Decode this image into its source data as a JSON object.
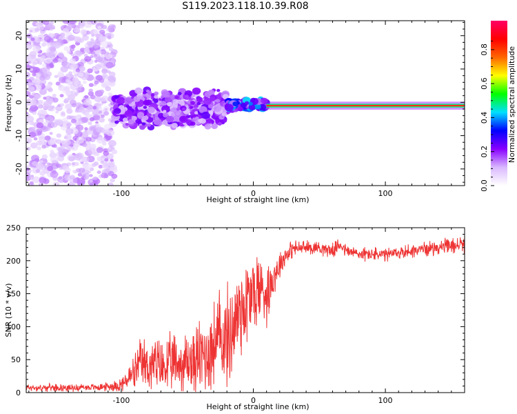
{
  "title": "S119.2023.118.10.39.R08",
  "colors": {
    "frame": "#000000",
    "snr_line": "#ee3333",
    "trace": "#ff2222",
    "colormap_stops": [
      "#ffffff",
      "#d9b8ff",
      "#8800ff",
      "#0000ff",
      "#00e0ff",
      "#00ff00",
      "#ffff00",
      "#ff6600",
      "#ff0000",
      "#ff0066"
    ]
  },
  "chart_data": [
    {
      "type": "heatmap",
      "title": "S119.2023.118.10.39.R08",
      "xlabel": "Height of straight line (km)",
      "ylabel": "Frequency (Hz)",
      "xlim": [
        -172,
        160
      ],
      "ylim": [
        -25,
        24.5
      ],
      "x_ticks": [
        -100,
        0,
        100
      ],
      "x_tick_labels": [
        "-100",
        "0",
        "100"
      ],
      "y_ticks": [
        20,
        10,
        0,
        -10,
        -20
      ],
      "y_tick_labels": [
        "20",
        "10",
        "0",
        "-10",
        "-20"
      ],
      "grid": false,
      "colorbar": {
        "label": "Normalized spectral amplitude",
        "range": [
          0,
          0.97
        ],
        "ticks": [
          0,
          0.2,
          0.4,
          0.6,
          0.8
        ],
        "tick_labels": [
          "0.0",
          "0.2",
          "0.4",
          "0.6",
          "0.8"
        ]
      },
      "regions": [
        {
          "x_range": [
            -172,
            -105
          ],
          "freq_range": [
            -25,
            24.5
          ],
          "amplitude": 0.05,
          "character": "scattered noise"
        },
        {
          "x_range": [
            -105,
            -20
          ],
          "freq_range": [
            -8,
            4
          ],
          "amplitude": 0.2,
          "character": "broadened signal"
        },
        {
          "x_range": [
            -20,
            10
          ],
          "freq_range": [
            -2.5,
            1
          ],
          "amplitude": 0.35,
          "character": "narrowing signal"
        },
        {
          "x_range": [
            10,
            160
          ],
          "freq_range": [
            -1.5,
            -0.5
          ],
          "amplitude": 0.97,
          "character": "narrow carrier near -1 Hz"
        }
      ]
    },
    {
      "type": "line",
      "xlabel": "Height of straight line (km)",
      "ylabel": "SNR (10 * v/v)",
      "xlim": [
        -172,
        160
      ],
      "ylim": [
        0,
        250
      ],
      "x_ticks": [
        -100,
        0,
        100
      ],
      "x_tick_labels": [
        "-100",
        "0",
        "100"
      ],
      "y_ticks": [
        0,
        50,
        100,
        150,
        200,
        250
      ],
      "y_tick_labels": [
        "0",
        "50",
        "100",
        "150",
        "200",
        "250"
      ],
      "grid": false,
      "series": [
        {
          "x": [
            -172,
            -160,
            -150,
            -140,
            -130,
            -120,
            -110,
            -100,
            -95,
            -90,
            -85,
            -80,
            -75,
            -70,
            -65,
            -60,
            -55,
            -50,
            -45,
            -40,
            -35,
            -30,
            -25,
            -20,
            -15,
            -10,
            -5,
            0,
            5,
            10,
            15,
            20,
            25,
            30,
            40,
            50,
            60,
            66,
            70,
            80,
            90,
            100,
            110,
            120,
            130,
            140,
            150,
            160
          ],
          "values": [
            8,
            7,
            8,
            7,
            8,
            8,
            9,
            12,
            20,
            30,
            45,
            40,
            42,
            38,
            40,
            45,
            42,
            48,
            45,
            55,
            60,
            70,
            85,
            80,
            100,
            130,
            135,
            150,
            160,
            150,
            175,
            195,
            210,
            218,
            220,
            220,
            215,
            225,
            215,
            210,
            210,
            208,
            212,
            215,
            218,
            220,
            222,
            225
          ],
          "noise": [
            5,
            5,
            5,
            5,
            5,
            5,
            6,
            10,
            18,
            25,
            35,
            38,
            40,
            40,
            40,
            42,
            45,
            48,
            50,
            55,
            60,
            65,
            70,
            72,
            75,
            80,
            70,
            65,
            55,
            45,
            30,
            20,
            15,
            12,
            10,
            10,
            10,
            10,
            10,
            10,
            10,
            10,
            10,
            10,
            10,
            10,
            12,
            12
          ]
        }
      ]
    }
  ]
}
